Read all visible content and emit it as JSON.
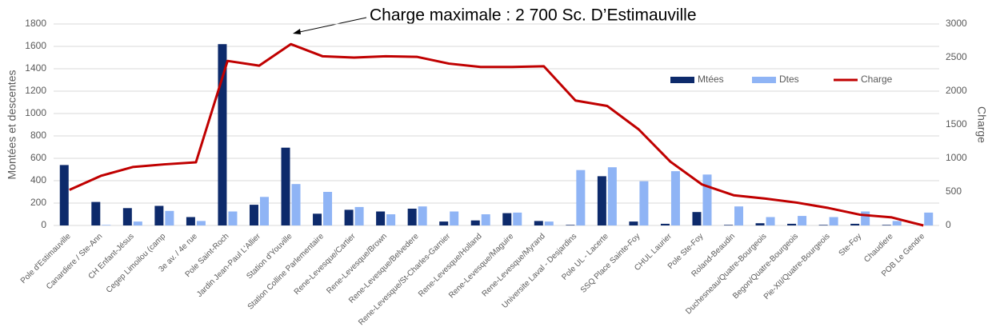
{
  "chart_data": {
    "type": "bar",
    "annotation": "Charge maximale : 2 700 Sc. D’Estimauville",
    "ylabel": "Montées et descentes",
    "y2label": "Charge",
    "categories": [
      "Pole d'Estimauville",
      "Canardiere / Ste-Ann",
      "CH Enfant-Jésus",
      "Cegep Limoilou (camp",
      "3e av. / 4e rue",
      "Pole Saint-Roch",
      "Jardin Jean-Paul L'Allier",
      "Station d'Youville",
      "Station Colline Parlementaire",
      "Rene-Levesque/Cartier",
      "Rene-Levesque/Brown",
      "Rene-Levesque/Belvedere",
      "Rene-Levesque/St-Charles-Garnier",
      "Rene-Levesque/Holland",
      "Rene-Levesque/Maguire",
      "Rene-Levesque/Myrand",
      "Universite Laval - Desjardins",
      "Pole UL - Lacerte",
      "SSQ Place Sainte-Foy",
      "CHUL Laurier",
      "Pole Ste-Foy",
      "Roland-Beaudin",
      "Duchesneau/Quatre-Bourgeois",
      "Begon/Quatre-Bourgeois",
      "Pie-XII/Quatre-Bourgeois",
      "Ste-Foy",
      "Chaudiere",
      "POB Le Gendre"
    ],
    "series": [
      {
        "name": "Mtées",
        "color": "#0d2a6b",
        "type": "bar",
        "values": [
          540,
          210,
          155,
          175,
          75,
          1620,
          185,
          695,
          105,
          140,
          125,
          150,
          35,
          45,
          110,
          40,
          5,
          440,
          35,
          15,
          120,
          5,
          20,
          15,
          5,
          15,
          5,
          0
        ]
      },
      {
        "name": "Dtes",
        "color": "#8fb4f5",
        "type": "bar",
        "values": [
          0,
          5,
          35,
          130,
          40,
          125,
          255,
          370,
          300,
          165,
          100,
          170,
          125,
          100,
          115,
          35,
          495,
          520,
          395,
          485,
          455,
          170,
          75,
          85,
          75,
          125,
          40,
          115
        ]
      },
      {
        "name": "Charge",
        "color": "#c00000",
        "type": "line",
        "axis": "y2",
        "values": [
          530,
          740,
          870,
          910,
          940,
          2450,
          2380,
          2700,
          2520,
          2500,
          2520,
          2510,
          2410,
          2360,
          2360,
          2370,
          1860,
          1780,
          1430,
          950,
          610,
          450,
          400,
          340,
          260,
          160,
          120,
          0
        ]
      }
    ],
    "ylim": [
      0,
      1800
    ],
    "yticks": [
      0,
      200,
      400,
      600,
      800,
      1000,
      1200,
      1400,
      1600,
      1800
    ],
    "y2lim": [
      0,
      3000
    ],
    "y2ticks": [
      0,
      500,
      1000,
      1500,
      2000,
      2500,
      3000
    ],
    "grid": true
  }
}
